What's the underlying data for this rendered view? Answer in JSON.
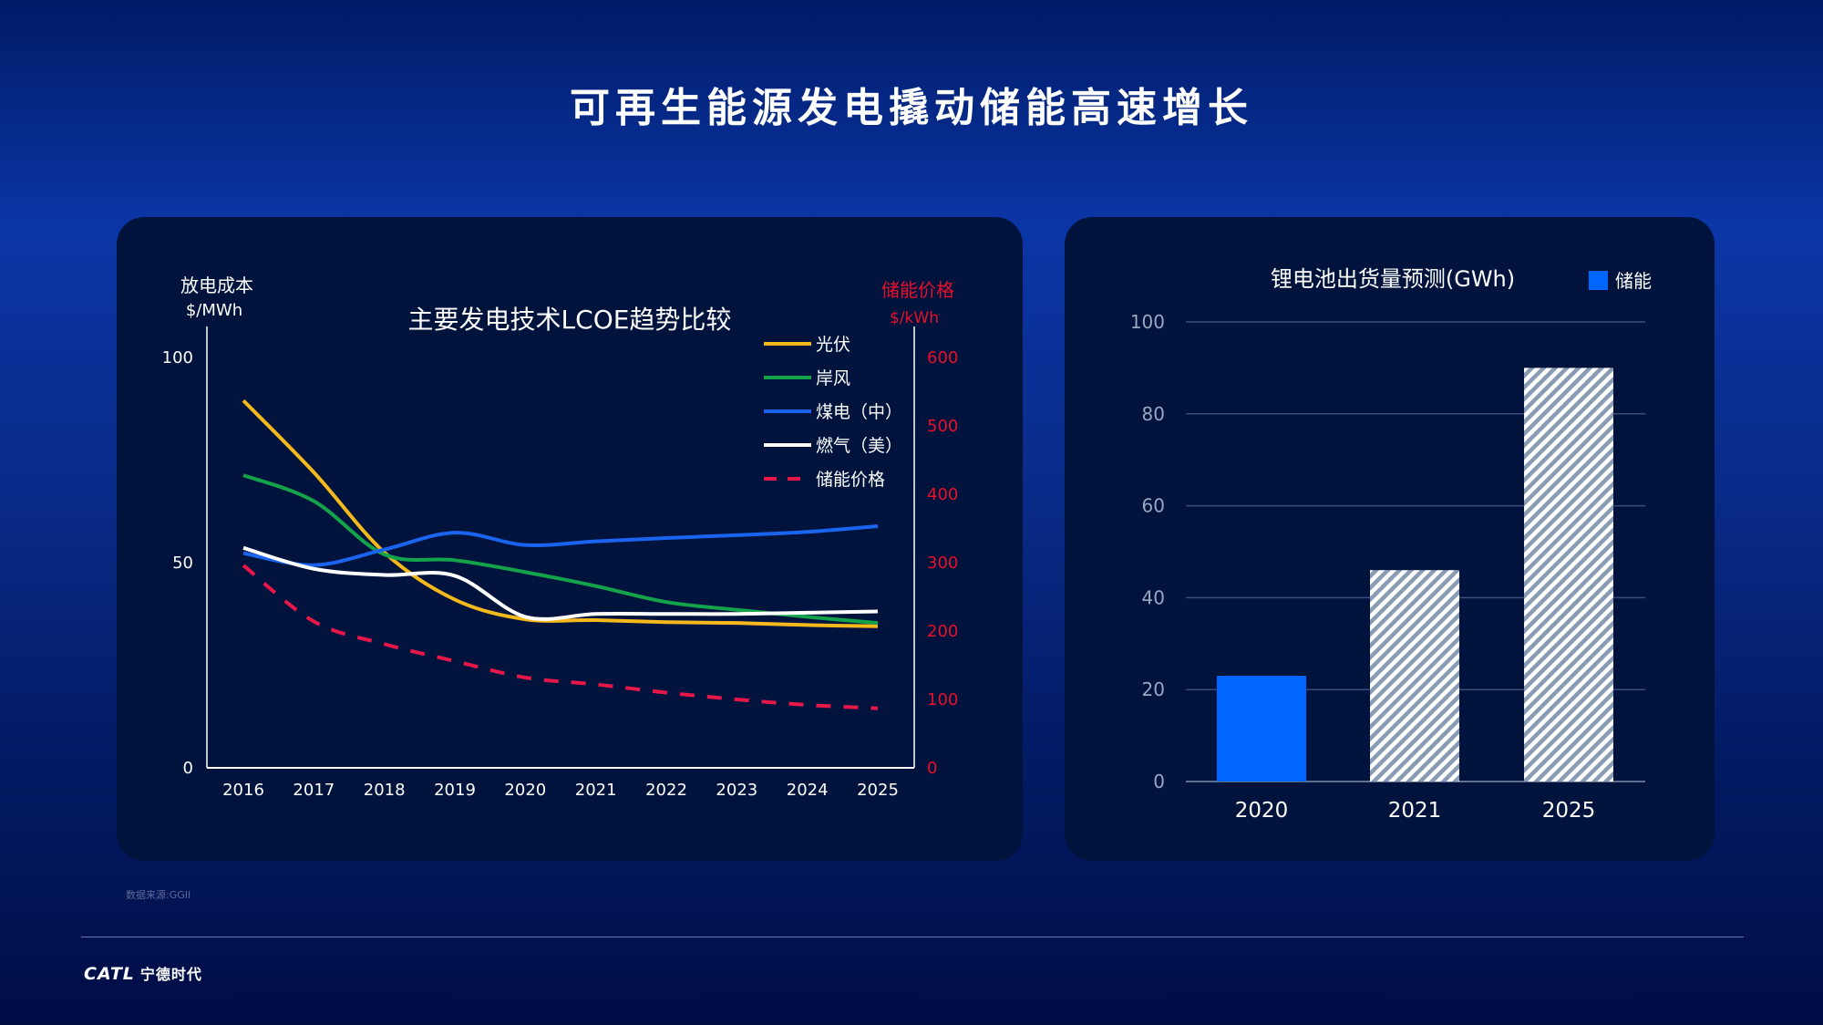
{
  "title": "可再生能源发电撬动储能高速增长",
  "source": "数据来源:GGII",
  "logo": {
    "brand": "CATL",
    "name": "宁德时代"
  },
  "chart_data": [
    {
      "type": "line",
      "title": "主要发电技术LCOE趋势比较",
      "ylabel": [
        "放电成本",
        "$/MWh"
      ],
      "y2label": [
        "储能价格",
        "$/kWh"
      ],
      "x": [
        "2016",
        "2017",
        "2018",
        "2019",
        "2020",
        "2021",
        "2022",
        "2023",
        "2024",
        "2025"
      ],
      "ylim": [
        0,
        100
      ],
      "yticks": [
        "0",
        "50",
        "100"
      ],
      "y2lim": [
        0,
        600
      ],
      "y2ticks": [
        "0",
        "100",
        "200",
        "300",
        "400",
        "500",
        "600"
      ],
      "grid": false,
      "legend": "top-right",
      "series": [
        {
          "name": "光伏",
          "axis": "left",
          "color": "#f5b91c",
          "dash": false,
          "values": [
            89.5,
            72,
            52.5,
            41,
            36.2,
            36,
            35.5,
            35.3,
            34.8,
            34.5
          ]
        },
        {
          "name": "岸风",
          "axis": "left",
          "color": "#13a34a",
          "dash": false,
          "values": [
            71.3,
            65,
            52,
            50.6,
            47.7,
            44.3,
            40.4,
            38.5,
            36.8,
            35.3
          ]
        },
        {
          "name": "煤电（中）",
          "axis": "left",
          "color": "#1a64f0",
          "dash": false,
          "values": [
            52.3,
            49.4,
            53.2,
            57.3,
            54.3,
            55.2,
            56,
            56.7,
            57.5,
            58.9
          ]
        },
        {
          "name": "燃气（美）",
          "axis": "left",
          "color": "#ffffff",
          "dash": false,
          "values": [
            53.6,
            48.5,
            47,
            46.8,
            36.8,
            37.5,
            37.5,
            37.5,
            37.8,
            38.1
          ]
        },
        {
          "name": "储能价格",
          "axis": "right",
          "color": "#e8174a",
          "dash": true,
          "values": [
            296,
            214,
            181,
            156,
            132,
            122,
            110,
            100,
            92,
            87
          ]
        }
      ]
    },
    {
      "type": "bar",
      "title": "锂电池出货量预测(GWh)",
      "categories": [
        "2020",
        "2021",
        "2025"
      ],
      "ylim": [
        0,
        100
      ],
      "yticks": [
        "0",
        "20",
        "40",
        "60",
        "80",
        "100"
      ],
      "grid": true,
      "legend": "top-right",
      "series": [
        {
          "name": "储能",
          "color": "#0066ff",
          "values": [
            23,
            46,
            90
          ]
        }
      ],
      "bar_styles": [
        "solid",
        "hatched",
        "hatched"
      ],
      "hatch_colors": [
        "#ffffff",
        "#8a9bb4"
      ]
    }
  ]
}
